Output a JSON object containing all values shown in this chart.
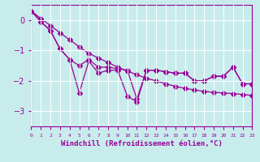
{
  "xlabel": "Windchill (Refroidissement éolien,°C)",
  "x": [
    0,
    1,
    2,
    3,
    4,
    5,
    6,
    7,
    8,
    9,
    10,
    11,
    12,
    13,
    14,
    15,
    16,
    17,
    18,
    19,
    20,
    21,
    22,
    23
  ],
  "smooth": [
    0.3,
    0.05,
    -0.18,
    -0.42,
    -0.65,
    -0.88,
    -1.1,
    -1.25,
    -1.4,
    -1.55,
    -1.68,
    -1.8,
    -1.92,
    -2.0,
    -2.1,
    -2.18,
    -2.25,
    -2.3,
    -2.35,
    -2.38,
    -2.4,
    -2.42,
    -2.45,
    -2.48
  ],
  "jagged1": [
    0.3,
    -0.05,
    -0.35,
    -0.95,
    -1.3,
    -1.5,
    -1.3,
    -1.55,
    -1.55,
    -1.6,
    -1.65,
    -2.6,
    -1.65,
    -1.65,
    -1.7,
    -1.75,
    -1.75,
    -2.0,
    -2.0,
    -1.85,
    -1.85,
    -1.55,
    -2.1,
    -2.1
  ],
  "jagged2": [
    0.3,
    -0.05,
    -0.35,
    -0.95,
    -1.3,
    -2.4,
    -1.35,
    -1.75,
    -1.65,
    -1.65,
    -2.5,
    -2.7,
    -1.65,
    -1.65,
    -1.7,
    -1.75,
    -1.75,
    -2.0,
    -2.0,
    -1.85,
    -1.85,
    -1.55,
    -2.1,
    -2.1
  ],
  "ylim": [
    -3.5,
    0.5
  ],
  "xlim": [
    0,
    23
  ],
  "yticks": [
    0,
    -1,
    -2,
    -3
  ],
  "line_color": "#990099",
  "bg_color": "#c8ecec",
  "grid_color": "#aadddd",
  "markersize": 3,
  "lw": 0.9
}
